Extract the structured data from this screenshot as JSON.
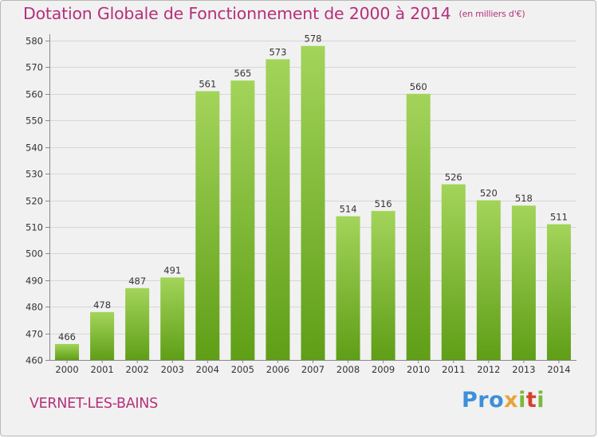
{
  "header": {
    "title": "Dotation Globale de Fonctionnement de 2000 à 2014",
    "unit_note": "(en milliers d'€)"
  },
  "footer": {
    "city": "VERNET-LES-BAINS",
    "logo": [
      "Pro",
      "x",
      "i",
      "t",
      "i"
    ]
  },
  "colors": {
    "title": "#b5307a",
    "bar_light": "#a3d45a",
    "bar_dark": "#5f9e17",
    "background": "#f1f1f1",
    "grid": "#d6d6d6"
  },
  "chart_data": {
    "type": "bar",
    "title": "Dotation Globale de Fonctionnement de 2000 à 2014",
    "subtitle": "(en milliers d'€)",
    "xlabel": "",
    "ylabel": "",
    "categories": [
      "2000",
      "2001",
      "2002",
      "2003",
      "2004",
      "2005",
      "2006",
      "2007",
      "2008",
      "2009",
      "2010",
      "2011",
      "2012",
      "2013",
      "2014"
    ],
    "values": [
      466,
      478,
      487,
      491,
      561,
      565,
      573,
      578,
      514,
      516,
      560,
      526,
      520,
      518,
      511
    ],
    "ylim": [
      460,
      580
    ],
    "yticks": [
      460,
      470,
      480,
      490,
      500,
      510,
      520,
      530,
      540,
      550,
      560,
      570,
      580
    ],
    "grid": true,
    "legend": "none"
  }
}
